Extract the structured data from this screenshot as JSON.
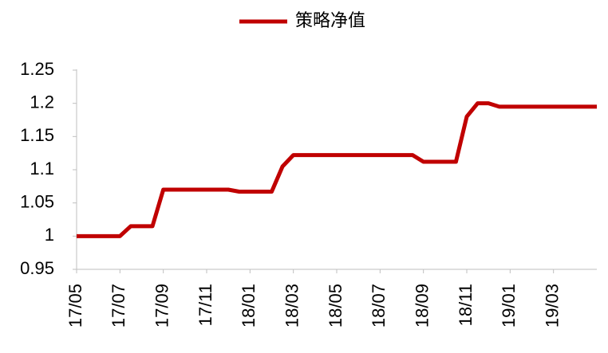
{
  "chart_data": {
    "type": "line",
    "categories": [
      "17/05",
      null,
      null,
      null,
      "17/07",
      null,
      null,
      null,
      "17/09",
      null,
      null,
      null,
      "17/11",
      null,
      null,
      null,
      "18/01",
      null,
      null,
      null,
      "18/03",
      null,
      null,
      null,
      "18/05",
      null,
      null,
      null,
      "18/07",
      null,
      null,
      null,
      "18/09",
      null,
      null,
      null,
      "18/11",
      null,
      null,
      null,
      "19/01",
      null,
      null,
      null,
      "19/03",
      null,
      null,
      null,
      null
    ],
    "series": [
      {
        "name": "策略净值",
        "color": "#c00000",
        "values": [
          1.0,
          1.0,
          1.0,
          1.0,
          1.0,
          1.015,
          1.015,
          1.015,
          1.07,
          1.07,
          1.07,
          1.07,
          1.07,
          1.07,
          1.07,
          1.067,
          1.067,
          1.067,
          1.067,
          1.105,
          1.122,
          1.122,
          1.122,
          1.122,
          1.122,
          1.122,
          1.122,
          1.122,
          1.122,
          1.122,
          1.122,
          1.122,
          1.112,
          1.112,
          1.112,
          1.112,
          1.18,
          1.2,
          1.2,
          1.195,
          1.195,
          1.195,
          1.195,
          1.195,
          1.195,
          1.195,
          1.195,
          1.195,
          1.195
        ]
      }
    ],
    "ylim": [
      0.95,
      1.25
    ],
    "yticks": [
      0.95,
      1,
      1.05,
      1.1,
      1.15,
      1.2,
      1.25
    ],
    "legend": "top"
  }
}
